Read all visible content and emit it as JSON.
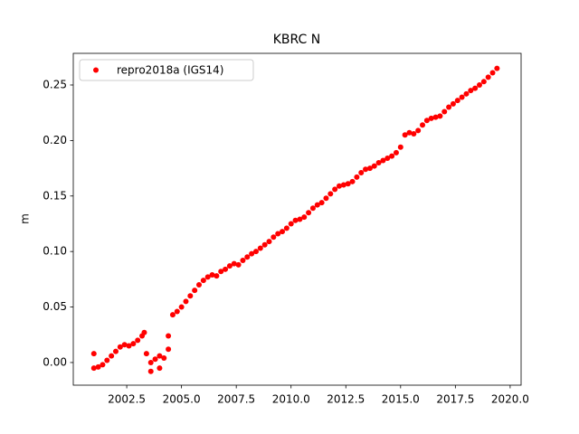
{
  "chart_data": {
    "type": "scatter",
    "title": "KBRC N",
    "y_label": "m",
    "x": [
      2001.0,
      2001.2,
      2001.4,
      2001.6,
      2001.8,
      2002.0,
      2002.2,
      2002.4,
      2002.6,
      2002.8,
      2003.0,
      2003.2,
      2003.4,
      2003.6,
      2003.8,
      2004.0,
      2004.2,
      2004.4,
      2004.6,
      2004.8,
      2005.0,
      2005.2,
      2005.4,
      2005.6,
      2005.8,
      2006.0,
      2006.2,
      2006.4,
      2006.6,
      2006.8,
      2007.0,
      2007.2,
      2007.4,
      2007.6,
      2007.8,
      2008.0,
      2008.2,
      2008.4,
      2008.6,
      2008.8,
      2009.0,
      2009.2,
      2009.4,
      2009.6,
      2009.8,
      2010.0,
      2010.2,
      2010.4,
      2010.6,
      2010.8,
      2011.0,
      2011.2,
      2011.4,
      2011.6,
      2011.8,
      2012.0,
      2012.2,
      2012.4,
      2012.6,
      2012.8,
      2013.0,
      2013.2,
      2013.4,
      2013.6,
      2013.8,
      2014.0,
      2014.2,
      2014.4,
      2014.6,
      2014.8,
      2015.0,
      2015.2,
      2015.4,
      2015.6,
      2015.8,
      2016.0,
      2016.2,
      2016.4,
      2016.6,
      2016.8,
      2017.0,
      2017.2,
      2017.4,
      2017.6,
      2017.8,
      2018.0,
      2018.2,
      2018.4,
      2018.6,
      2018.8,
      2019.0,
      2019.2,
      2019.4,
      2001.0,
      2004.4,
      2003.6,
      2004.0,
      2003.3
    ],
    "series": [
      {
        "name": "repro2018a (IGS14)",
        "color": "#ff0000",
        "values": [
          -0.005,
          -0.004,
          -0.002,
          0.002,
          0.006,
          0.01,
          0.014,
          0.016,
          0.015,
          0.017,
          0.02,
          0.024,
          0.008,
          0.0,
          0.003,
          0.006,
          0.004,
          0.012,
          0.043,
          0.046,
          0.05,
          0.055,
          0.06,
          0.065,
          0.07,
          0.074,
          0.077,
          0.079,
          0.078,
          0.082,
          0.084,
          0.087,
          0.089,
          0.088,
          0.092,
          0.095,
          0.098,
          0.1,
          0.103,
          0.106,
          0.109,
          0.113,
          0.116,
          0.118,
          0.121,
          0.125,
          0.128,
          0.129,
          0.131,
          0.135,
          0.139,
          0.142,
          0.144,
          0.148,
          0.152,
          0.156,
          0.159,
          0.16,
          0.161,
          0.163,
          0.167,
          0.171,
          0.174,
          0.175,
          0.177,
          0.18,
          0.182,
          0.184,
          0.186,
          0.189,
          0.194,
          0.205,
          0.207,
          0.206,
          0.209,
          0.214,
          0.218,
          0.22,
          0.221,
          0.222,
          0.226,
          0.23,
          0.233,
          0.236,
          0.239,
          0.242,
          0.245,
          0.247,
          0.25,
          0.253,
          0.257,
          0.261,
          0.265,
          0.008,
          0.024,
          -0.008,
          -0.005,
          0.027
        ]
      }
    ],
    "xlim": [
      2000.06,
      2020.5
    ],
    "ylim": [
      -0.0204,
      0.2785
    ],
    "xticks": [
      2002.5,
      {
        "value": 2005.0,
        "label": "2005.0"
      },
      2007.5,
      {
        "value": 2010.0,
        "label": "2010.0"
      },
      2012.5,
      {
        "value": 2015.0,
        "label": "2015.0"
      },
      2017.5,
      {
        "value": 2020.0,
        "label": "2020.0"
      }
    ],
    "yticks": [
      {
        "value": 0.0,
        "label": "0.00"
      },
      0.05,
      {
        "value": 0.1,
        "label": "0.10"
      },
      0.15,
      {
        "value": 0.2,
        "label": "0.20"
      },
      0.25
    ],
    "grid": false,
    "legend": "upper left"
  }
}
